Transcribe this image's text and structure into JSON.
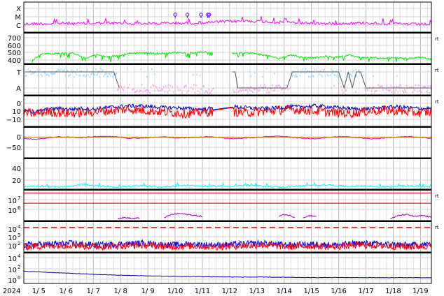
{
  "chart_data": {
    "type": "line",
    "x_axis": {
      "year_label": "2024",
      "day_labels": [
        "1/ 5",
        "1/ 6",
        "1/ 7",
        "1/ 8",
        "1/ 9",
        "1/10",
        "1/11",
        "1/12",
        "1/13",
        "1/14",
        "1/15",
        "1/16",
        "1/17",
        "1/18",
        "1/19"
      ],
      "start_day": 4.45,
      "end_day": 19.4,
      "grid": true
    },
    "panels": [
      {
        "id": "flare-class",
        "type": "line",
        "y_ticks": [
          "X",
          "M",
          "C"
        ],
        "side_label": "",
        "series": [
          {
            "color": "#ff00ff",
            "values": [
              0.15,
              0.2,
              0.18,
              0.25,
              0.2,
              0.22,
              0.3,
              0.25,
              0.2,
              0.2,
              0.22,
              0.28,
              0.26,
              0.3,
              0.35,
              0.45,
              0.5,
              0.55,
              0.5,
              0.4,
              0.35,
              0.3,
              0.25,
              0.2,
              0.22,
              0.25,
              0.3,
              0.25,
              0.2,
              0.15,
              0.1,
              0.12
            ]
          }
        ],
        "markers": {
          "color": "#6600ff",
          "symbol": "circle",
          "x_days": [
            10.0,
            10.45,
            10.95,
            11.2,
            11.25
          ],
          "y_level": "X"
        }
      },
      {
        "id": "solar-wind-speed",
        "type": "line",
        "y_ticks": [
          "700",
          "600",
          "500",
          "400"
        ],
        "y_range": [
          330,
          760
        ],
        "side_label": "rt",
        "series": [
          {
            "color": "#00ee00",
            "segments": [
              {
                "x0": 4.75,
                "x1": 11.4,
                "values": [
                  380,
                  470,
                  465,
                  480,
                  470,
                  400,
                  460,
                  420,
                  440,
                  470,
                  480,
                  475,
                  470,
                  480,
                  485,
                  480,
                  490,
                  485
                ]
              },
              {
                "x0": 12.1,
                "x1": 19.4,
                "values": [
                  470,
                  480,
                  470,
                  440,
                  400,
                  450,
                  420,
                  410,
                  430,
                  420,
                  450,
                  410,
                  420,
                  400,
                  410,
                  400,
                  420,
                  390
                ]
              }
            ]
          }
        ]
      },
      {
        "id": "magnetic-sector",
        "type": "scatter",
        "y_ticks": [
          "T",
          "A"
        ],
        "side_label": "rt",
        "series": [
          {
            "color": "#aaddff",
            "level": "T"
          },
          {
            "color": "#ffaaee",
            "level": "A"
          },
          {
            "color": "#555555",
            "style": "step-line"
          }
        ]
      },
      {
        "id": "imf",
        "type": "line",
        "y_ticks": [
          "0",
          "10",
          "−10"
        ],
        "y_range": [
          -18,
          18
        ],
        "side_label": "rt",
        "series": [
          {
            "color": "#0000cc",
            "values": [
              0,
              -1,
              2,
              3,
              2,
              3,
              2,
              4,
              5,
              6,
              6,
              5,
              4,
              4,
              3,
              2,
              3,
              4,
              5,
              4,
              3,
              3,
              4,
              5,
              5,
              6,
              5,
              4,
              3,
              2,
              3,
              4,
              5,
              4,
              3,
              3
            ]
          },
          {
            "color": "#ff0000",
            "values": [
              -2,
              -3,
              -1,
              -2,
              -3,
              -2,
              -1,
              0,
              1,
              2,
              1,
              0,
              -1,
              -2,
              -3,
              -2,
              -1,
              0,
              -1,
              -2,
              -1,
              0,
              1,
              2,
              1,
              0,
              -1,
              -2,
              -3,
              -1,
              0,
              1,
              0,
              -1,
              -2,
              -1
            ]
          }
        ]
      },
      {
        "id": "dst",
        "type": "line",
        "y_ticks": [
          "0",
          "−50"
        ],
        "y_range": [
          -80,
          40
        ],
        "side_label": "",
        "series": [
          {
            "color": "#dd00dd",
            "values": [
              -5,
              -8,
              -3,
              2,
              0,
              -2,
              3,
              4,
              2,
              -4,
              -3,
              -1,
              2,
              -3,
              -2,
              0,
              3,
              -2,
              -6,
              -3,
              -1,
              3,
              5,
              0,
              -4,
              -6,
              -2,
              3,
              1,
              -3,
              -7,
              -2,
              0,
              3,
              0,
              -4
            ]
          },
          {
            "color": "#cc8800",
            "values": [
              0,
              0,
              0,
              0,
              0,
              0,
              0,
              0,
              0,
              0,
              0,
              0,
              0,
              0,
              0,
              0,
              0,
              0,
              0,
              0,
              0,
              0,
              0,
              0,
              0,
              0,
              0,
              0,
              0,
              0,
              0,
              0,
              0,
              0,
              0,
              0
            ]
          }
        ]
      },
      {
        "id": "proton-density",
        "type": "line",
        "y_ticks": [
          "40",
          "20"
        ],
        "y_range": [
          0,
          55
        ],
        "side_label": "",
        "series": [
          {
            "color": "#00ffff",
            "values": [
              4,
              6,
              5,
              4,
              5,
              8,
              6,
              5,
              4,
              5,
              6,
              5,
              4,
              6,
              7,
              6,
              5,
              6,
              5,
              7,
              6,
              5,
              4,
              5,
              6,
              7,
              8,
              6,
              5,
              6,
              5,
              4,
              5,
              6,
              5,
              4
            ]
          }
        ]
      },
      {
        "id": "electron-flux",
        "type": "line",
        "y_ticks": [
          "10^7",
          "10^6"
        ],
        "y_log_range": [
          4.3,
          7.3
        ],
        "side_label": "rt",
        "series": [
          {
            "color": "#aa00cc",
            "segments": [
              {
                "x0": 7.9,
                "x1": 8.7,
                "values": [
                  4.5,
                  4.6,
                  4.5,
                  4.55
                ]
              },
              {
                "x0": 9.6,
                "x1": 11.0,
                "values": [
                  4.6,
                  4.9,
                  5.0,
                  4.9,
                  4.8,
                  4.7
                ]
              },
              {
                "x0": 13.8,
                "x1": 14.4,
                "values": [
                  4.7,
                  4.9,
                  4.8,
                  4.6
                ]
              },
              {
                "x0": 14.7,
                "x1": 15.2,
                "values": [
                  4.6,
                  4.8,
                  4.7
                ]
              },
              {
                "x0": 17.9,
                "x1": 19.4,
                "values": [
                  4.5,
                  4.8,
                  4.9,
                  4.7,
                  4.8,
                  4.6
                ]
              }
            ]
          },
          {
            "color": "#cc0000",
            "style": "reference-line",
            "values_log": [
              7.0,
              6.0
            ]
          }
        ]
      },
      {
        "id": "proton-flux",
        "type": "line",
        "y_ticks": [
          "10^4",
          "10^3",
          "10^2"
        ],
        "y_log_range": [
          1.0,
          4.5
        ],
        "side_label": "rt",
        "series": [
          {
            "color": "#0000ff",
            "values_log": [
              1.8,
              1.9,
              2.0,
              1.8,
              1.9,
              2.0,
              1.8,
              1.9,
              1.8,
              1.9,
              2.0,
              1.8,
              1.9,
              1.8,
              2.0,
              1.9,
              1.8,
              1.9
            ]
          },
          {
            "color": "#ff0000",
            "values_log": [
              1.6,
              1.7,
              1.8,
              1.6,
              1.7,
              1.8,
              1.6,
              1.7,
              1.6,
              1.7,
              1.8,
              1.6,
              1.7,
              1.6,
              1.8,
              1.7,
              1.6,
              1.7
            ]
          },
          {
            "color": "#ee0000",
            "style": "dashed-threshold",
            "values_log": [
              3.8
            ]
          }
        ]
      },
      {
        "id": "particle-flux",
        "type": "line",
        "y_ticks": [
          "10^4",
          "10^2",
          "10^0"
        ],
        "y_log_range": [
          -1.0,
          4.8
        ],
        "side_label": "",
        "series": [
          {
            "color": "#0000aa",
            "values_log": [
              1.3,
              1.1,
              0.9,
              0.7,
              0.55,
              0.45,
              0.35,
              0.3,
              0.25,
              0.2,
              0.2,
              0.15,
              0.1,
              0.12,
              0.1,
              0.08,
              0.1,
              0.05
            ]
          }
        ]
      }
    ]
  }
}
